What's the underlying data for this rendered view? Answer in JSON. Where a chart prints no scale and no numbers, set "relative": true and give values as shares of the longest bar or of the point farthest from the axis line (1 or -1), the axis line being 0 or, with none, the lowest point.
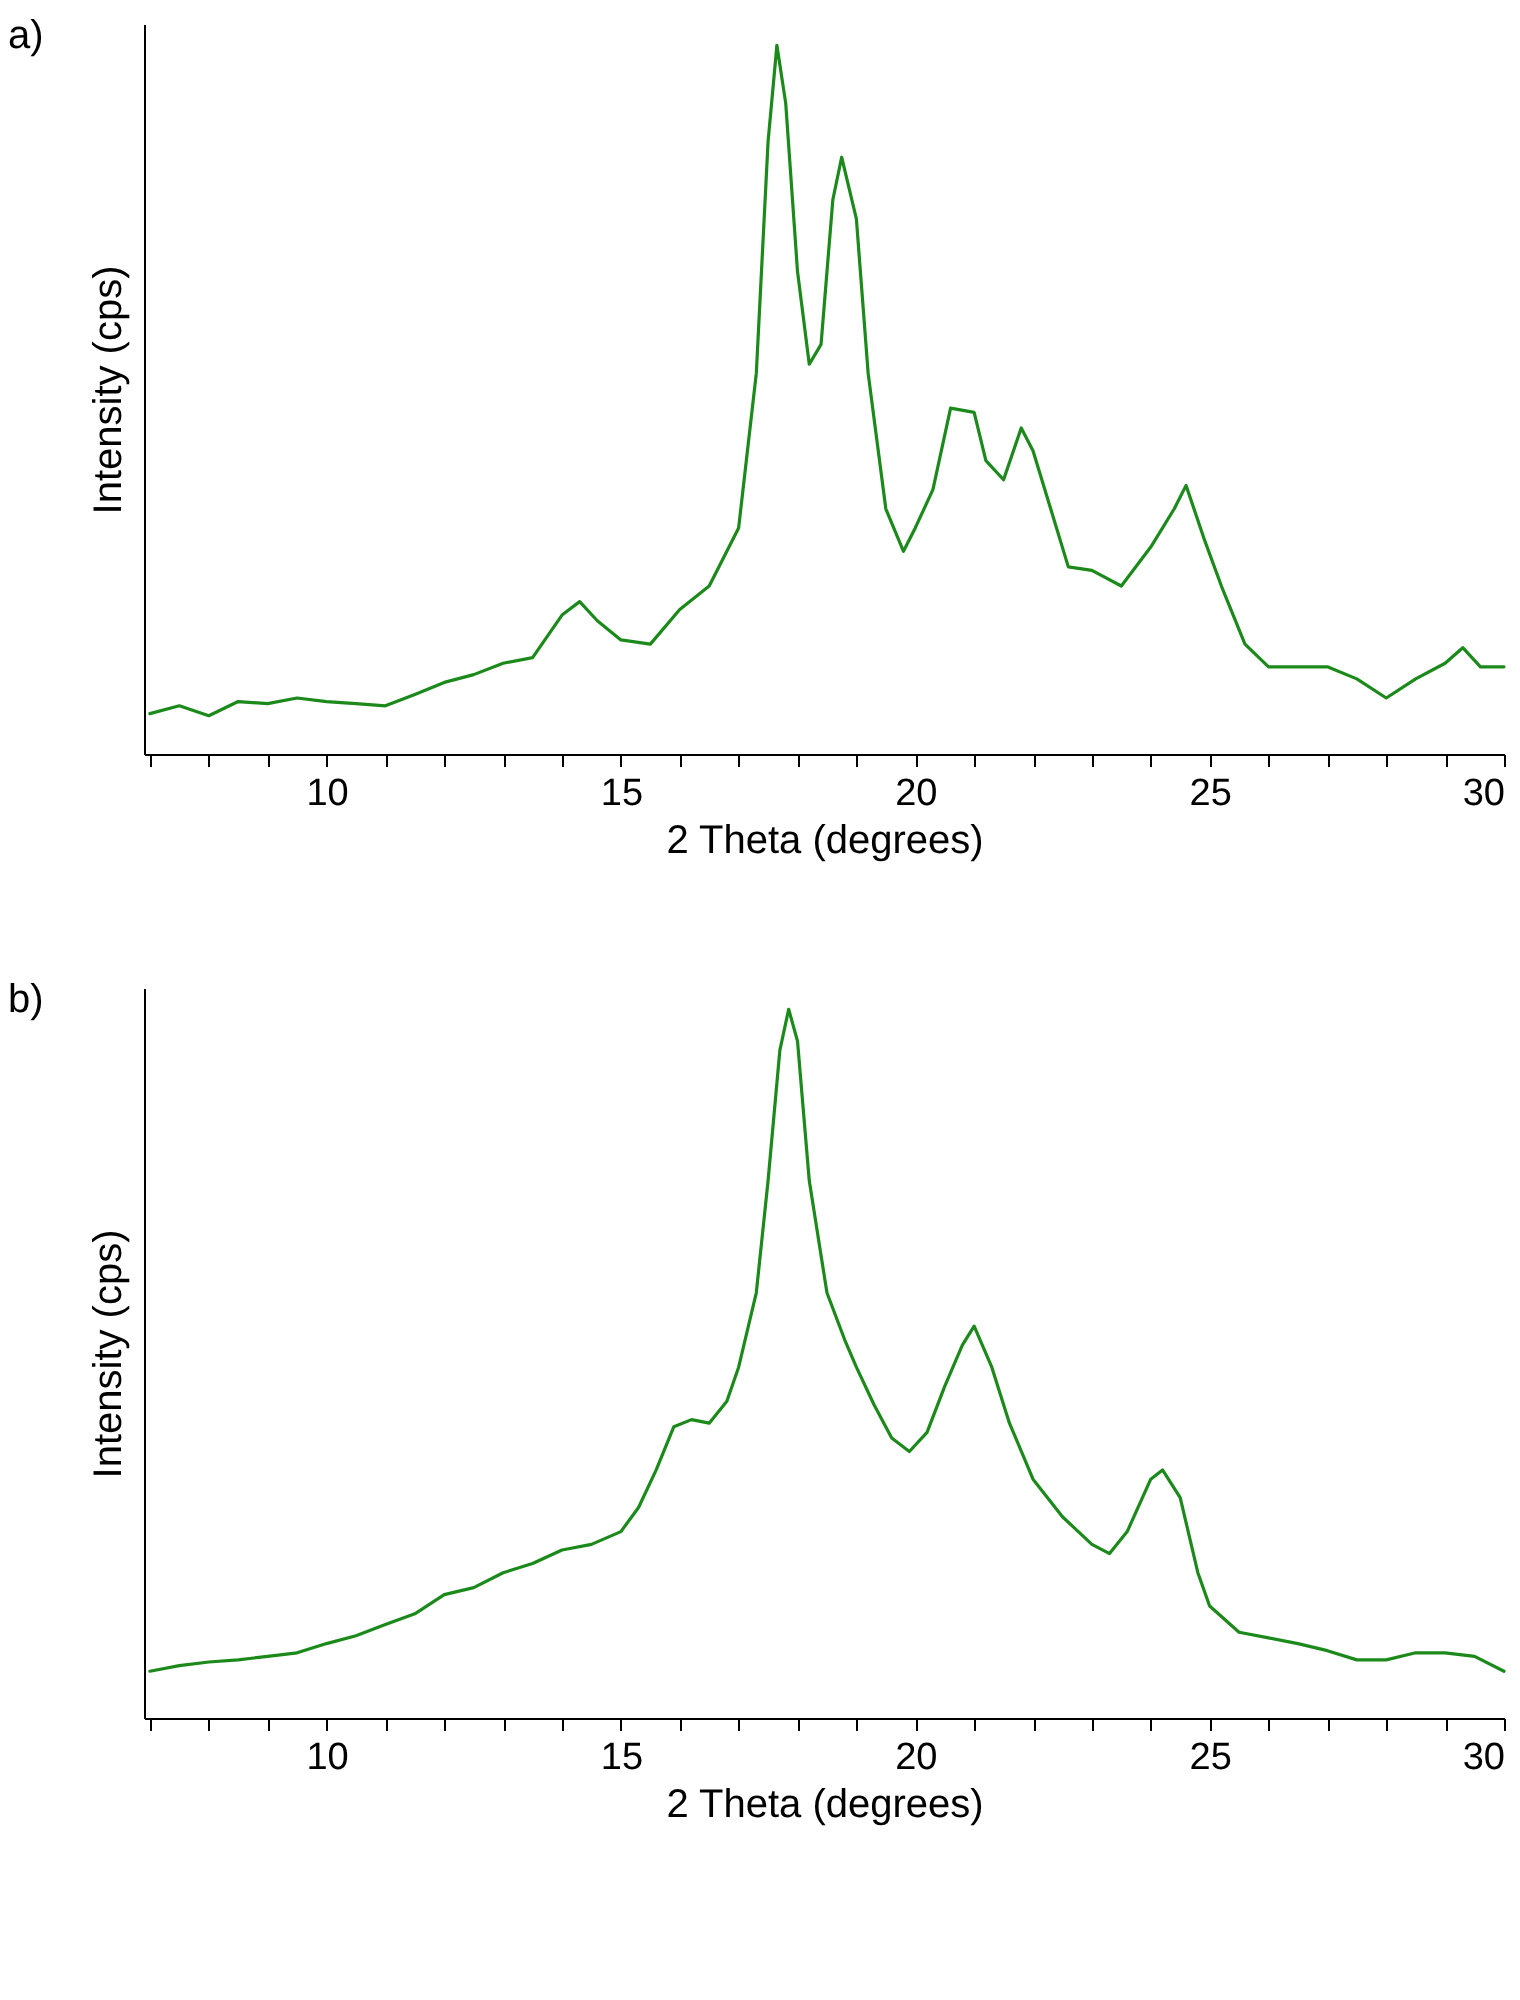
{
  "chart_data": [
    {
      "type": "line",
      "title": "a)",
      "xlabel": "2 Theta (degrees)",
      "ylabel": "Intensity (cps)",
      "relative": true,
      "tick_labels": "x",
      "marker": "none",
      "line_style": "solid",
      "xlim": [
        6.9,
        30
      ],
      "xticks": [
        {
          "value": 7,
          "label": null
        },
        {
          "value": 8,
          "label": null
        },
        {
          "value": 9,
          "label": null
        },
        10,
        {
          "value": 11,
          "label": null
        },
        {
          "value": 12,
          "label": null
        },
        {
          "value": 13,
          "label": null
        },
        {
          "value": 14,
          "label": null
        },
        15,
        {
          "value": 16,
          "label": null
        },
        {
          "value": 17,
          "label": null
        },
        {
          "value": 18,
          "label": null
        },
        {
          "value": 19,
          "label": null
        },
        20,
        {
          "value": 21,
          "label": null
        },
        {
          "value": 22,
          "label": null
        },
        {
          "value": 23,
          "label": null
        },
        {
          "value": 24,
          "label": null
        },
        25,
        {
          "value": 26,
          "label": null
        },
        {
          "value": 27,
          "label": null
        },
        {
          "value": 28,
          "label": null
        },
        {
          "value": 29,
          "label": null
        },
        30
      ],
      "x": [
        7,
        7.5,
        8,
        8.5,
        9,
        9.5,
        10,
        10.5,
        11,
        11.5,
        12,
        12.5,
        13,
        13.5,
        14,
        14.3,
        14.6,
        15,
        15.5,
        16,
        16.5,
        17,
        17.3,
        17.5,
        17.65,
        17.8,
        18,
        18.2,
        18.4,
        18.6,
        18.75,
        19,
        19.2,
        19.5,
        19.8,
        20,
        20.3,
        20.6,
        21,
        21.2,
        21.5,
        21.8,
        22,
        22.3,
        22.6,
        23,
        23.5,
        24,
        24.4,
        24.6,
        24.9,
        25.2,
        25.6,
        26,
        26.5,
        27,
        27.5,
        28,
        28.5,
        29,
        29.3,
        29.6,
        30
      ],
      "series": [
        {
          "color": "#1b8a1b",
          "values": [
            0.057,
            0.068,
            0.054,
            0.074,
            0.071,
            0.079,
            0.074,
            0.071,
            0.068,
            0.084,
            0.101,
            0.112,
            0.128,
            0.136,
            0.196,
            0.215,
            0.188,
            0.161,
            0.155,
            0.204,
            0.237,
            0.319,
            0.537,
            0.864,
            1,
            0.918,
            0.681,
            0.55,
            0.578,
            0.782,
            0.842,
            0.755,
            0.537,
            0.346,
            0.286,
            0.319,
            0.373,
            0.488,
            0.482,
            0.414,
            0.387,
            0.46,
            0.428,
            0.346,
            0.264,
            0.259,
            0.237,
            0.292,
            0.346,
            0.379,
            0.305,
            0.237,
            0.155,
            0.123,
            0.123,
            0.123,
            0.106,
            0.079,
            0.106,
            0.128,
            0.15,
            0.123,
            0.123
          ]
        }
      ]
    },
    {
      "type": "line",
      "title": "b)",
      "xlabel": "2 Theta (degrees)",
      "ylabel": "Intensity (cps)",
      "relative": true,
      "tick_labels": "x",
      "marker": "none",
      "line_style": "solid",
      "xlim": [
        6.9,
        30
      ],
      "xticks": [
        {
          "value": 7,
          "label": null
        },
        {
          "value": 8,
          "label": null
        },
        {
          "value": 9,
          "label": null
        },
        10,
        {
          "value": 11,
          "label": null
        },
        {
          "value": 12,
          "label": null
        },
        {
          "value": 13,
          "label": null
        },
        {
          "value": 14,
          "label": null
        },
        15,
        {
          "value": 16,
          "label": null
        },
        {
          "value": 17,
          "label": null
        },
        {
          "value": 18,
          "label": null
        },
        {
          "value": 19,
          "label": null
        },
        20,
        {
          "value": 21,
          "label": null
        },
        {
          "value": 22,
          "label": null
        },
        {
          "value": 23,
          "label": null
        },
        {
          "value": 24,
          "label": null
        },
        25,
        {
          "value": 26,
          "label": null
        },
        {
          "value": 27,
          "label": null
        },
        {
          "value": 28,
          "label": null
        },
        {
          "value": 29,
          "label": null
        },
        30
      ],
      "x": [
        7,
        7.5,
        8,
        8.5,
        9,
        9.5,
        10,
        10.5,
        11,
        11.5,
        12,
        12.5,
        13,
        13.5,
        14,
        14.5,
        15,
        15.3,
        15.6,
        15.9,
        16.2,
        16.5,
        16.8,
        17,
        17.3,
        17.5,
        17.7,
        17.85,
        18,
        18.2,
        18.5,
        18.8,
        19,
        19.3,
        19.6,
        19.9,
        20.2,
        20.5,
        20.8,
        21,
        21.3,
        21.6,
        22,
        22.5,
        23,
        23.3,
        23.6,
        24,
        24.2,
        24.5,
        24.8,
        25,
        25.5,
        26,
        26.5,
        27,
        27.5,
        28,
        28.5,
        29,
        29.5,
        30
      ],
      "series": [
        {
          "color": "#1b8a1b",
          "values": [
            0.066,
            0.074,
            0.079,
            0.082,
            0.087,
            0.092,
            0.105,
            0.116,
            0.132,
            0.147,
            0.174,
            0.184,
            0.205,
            0.218,
            0.237,
            0.245,
            0.263,
            0.297,
            0.35,
            0.411,
            0.421,
            0.416,
            0.447,
            0.495,
            0.6,
            0.758,
            0.942,
            1,
            0.955,
            0.758,
            0.6,
            0.534,
            0.495,
            0.442,
            0.395,
            0.376,
            0.403,
            0.468,
            0.526,
            0.553,
            0.495,
            0.416,
            0.337,
            0.284,
            0.245,
            0.232,
            0.263,
            0.337,
            0.35,
            0.311,
            0.205,
            0.158,
            0.121,
            0.113,
            0.105,
            0.095,
            0.082,
            0.082,
            0.092,
            0.092,
            0.087,
            0.066
          ]
        }
      ]
    }
  ]
}
